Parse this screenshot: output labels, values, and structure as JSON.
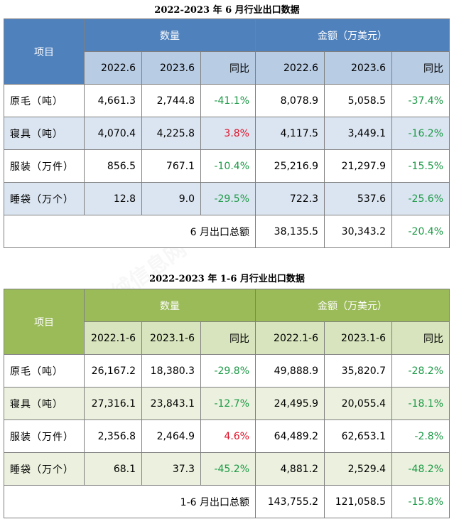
{
  "tables": [
    {
      "title": "2022-2023 年 6 月行业出口数据",
      "item_header": "项目",
      "qty_header": "数量",
      "amt_header": "金额（万美元）",
      "sub_headers": [
        "2022.6",
        "2023.6",
        "同比",
        "2022.6",
        "2023.6",
        "同比"
      ],
      "rows": [
        {
          "item": "原毛（吨）",
          "q22": "4,661.3",
          "q23": "2,744.8",
          "qyoy": "-41.1%",
          "a22": "8,078.9",
          "a23": "5,058.5",
          "ayoy": "-37.4%"
        },
        {
          "item": "寝具（吨）",
          "q22": "4,070.4",
          "q23": "4,225.8",
          "qyoy": "3.8%",
          "a22": "4,117.5",
          "a23": "3,449.1",
          "ayoy": "-16.2%"
        },
        {
          "item": "服装（万件）",
          "q22": "856.5",
          "q23": "767.1",
          "qyoy": "-10.4%",
          "a22": "25,216.9",
          "a23": "21,297.9",
          "ayoy": "-15.5%"
        },
        {
          "item": "睡袋（万个）",
          "q22": "12.8",
          "q23": "9.0",
          "qyoy": "-29.5%",
          "a22": "722.3",
          "a23": "537.6",
          "ayoy": "-25.6%"
        }
      ],
      "total": {
        "label": "6 月出口总额",
        "a22": "38,135.5",
        "a23": "30,343.2",
        "ayoy": "-20.4%"
      }
    },
    {
      "title": "2022-2023 年 1-6 月行业出口数据",
      "item_header": "项目",
      "qty_header": "数量",
      "amt_header": "金额（万美元）",
      "sub_headers": [
        "2022.1-6",
        "2023.1-6",
        "同比",
        "2022.1-6",
        "2023.1-6",
        "同比"
      ],
      "rows": [
        {
          "item": "原毛（吨）",
          "q22": "26,167.2",
          "q23": "18,380.3",
          "qyoy": "-29.8%",
          "a22": "49,888.9",
          "a23": "35,820.7",
          "ayoy": "-28.2%"
        },
        {
          "item": "寝具（吨）",
          "q22": "27,316.1",
          "q23": "23,843.1",
          "qyoy": "-12.7%",
          "a22": "24,495.9",
          "a23": "20,055.4",
          "ayoy": "-18.1%"
        },
        {
          "item": "服装（万件）",
          "q22": "2,356.8",
          "q23": "2,464.9",
          "qyoy": "4.6%",
          "a22": "64,489.2",
          "a23": "62,653.1",
          "ayoy": "-2.8%"
        },
        {
          "item": "睡袋（万个）",
          "q22": "68.1",
          "q23": "37.3",
          "qyoy": "-45.2%",
          "a22": "4,881.2",
          "a23": "2,529.4",
          "ayoy": "-48.2%"
        }
      ],
      "total": {
        "label": "1-6 月出口总额",
        "a22": "143,755.2",
        "a23": "121,058.5",
        "ayoy": "-15.8%"
      }
    }
  ],
  "watermark": "中国羽绒信息网 www.cfd.com.cn",
  "colors": {
    "positive": "#e0142b",
    "negative": "#1d9a47",
    "table1_header": "#4f81bd",
    "table2_header": "#9bbb59"
  }
}
